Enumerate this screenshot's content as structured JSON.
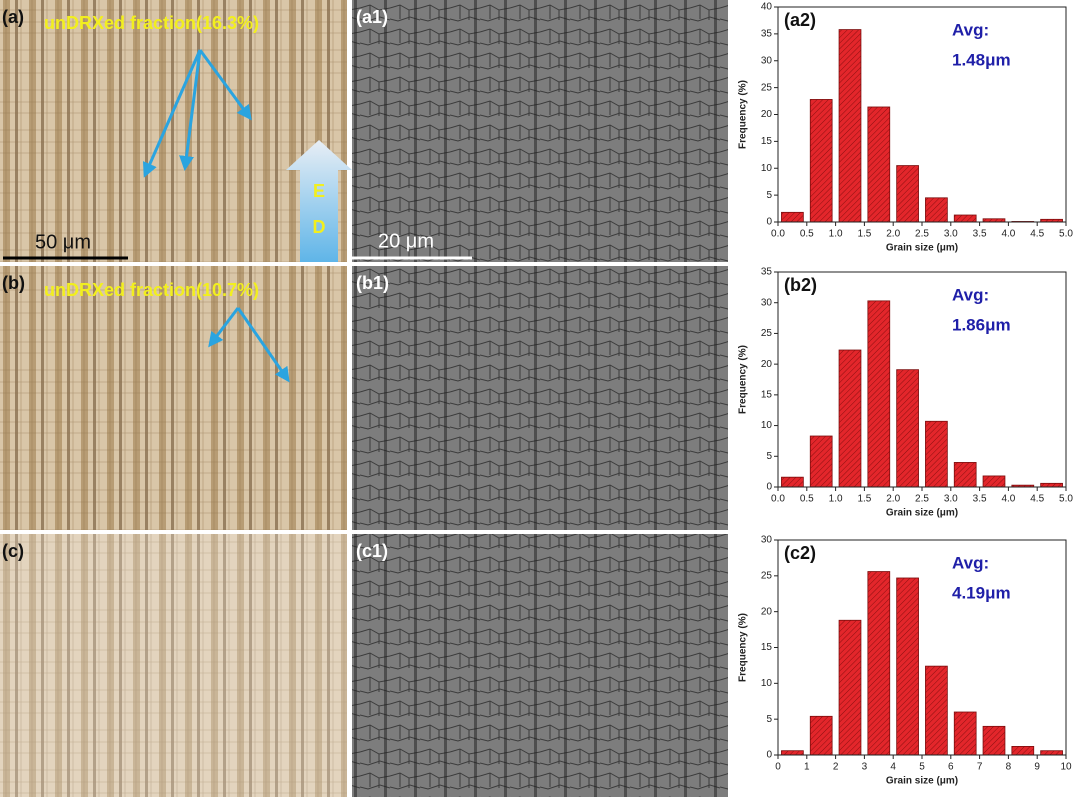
{
  "panels": [
    {
      "label": "(a)",
      "annotation": "unDRXed fraction(16.3%)",
      "scale_bar": "50 μm",
      "direction": [
        "E",
        "D"
      ]
    },
    {
      "label": "(b)",
      "annotation": "unDRXed fraction(10.7%)"
    },
    {
      "label": "(c)"
    }
  ],
  "sem_panels": [
    {
      "label": "(a1)",
      "scale_bar": "20 μm"
    },
    {
      "label": "(b1)"
    },
    {
      "label": "(c1)"
    }
  ],
  "chart_data": [
    {
      "type": "histogram",
      "panel_label": "(a2)",
      "annotations": [
        "Avg:",
        "1.48μm"
      ],
      "xlabel": "Grain size (μm)",
      "ylabel": "Frequency (%)",
      "color": "#e3262b",
      "bins": [
        0,
        0.5,
        1,
        1.5,
        2,
        2.5,
        3,
        3.5,
        4,
        4.5,
        5
      ],
      "values": [
        1.8,
        22.8,
        35.8,
        21.4,
        10.5,
        4.5,
        1.3,
        0.6,
        0.1,
        0.5
      ],
      "xlim": [
        0,
        5
      ],
      "xticks": [
        {
          "value": 0,
          "label": "0.0"
        },
        0.5,
        {
          "value": 1,
          "label": "1.0"
        },
        1.5,
        {
          "value": 2,
          "label": "2.0"
        },
        2.5,
        {
          "value": 3,
          "label": "3.0"
        },
        3.5,
        {
          "value": 4,
          "label": "4.0"
        },
        4.5,
        {
          "value": 5,
          "label": "5.0"
        }
      ],
      "ylim": [
        0,
        40
      ],
      "yticks": [
        0,
        5,
        10,
        15,
        20,
        25,
        30,
        35,
        40
      ]
    },
    {
      "type": "histogram",
      "panel_label": "(b2)",
      "annotations": [
        "Avg:",
        "1.86μm"
      ],
      "xlabel": "Grain size (μm)",
      "ylabel": "Frequency (%)",
      "color": "#e3262b",
      "bins": [
        0,
        0.5,
        1,
        1.5,
        2,
        2.5,
        3,
        3.5,
        4,
        4.5,
        5
      ],
      "values": [
        1.6,
        8.3,
        22.3,
        30.3,
        19.1,
        10.7,
        4.0,
        1.8,
        0.3,
        0.6
      ],
      "xlim": [
        0,
        5
      ],
      "xticks": [
        {
          "value": 0,
          "label": "0.0"
        },
        0.5,
        {
          "value": 1,
          "label": "1.0"
        },
        1.5,
        {
          "value": 2,
          "label": "2.0"
        },
        2.5,
        {
          "value": 3,
          "label": "3.0"
        },
        3.5,
        {
          "value": 4,
          "label": "4.0"
        },
        4.5,
        {
          "value": 5,
          "label": "5.0"
        }
      ],
      "ylim": [
        0,
        35
      ],
      "yticks": [
        0,
        5,
        10,
        15,
        20,
        25,
        30,
        35
      ]
    },
    {
      "type": "histogram",
      "panel_label": "(c2)",
      "annotations": [
        "Avg:",
        "4.19μm"
      ],
      "xlabel": "Grain size (μm)",
      "ylabel": "Frequency (%)",
      "color": "#e3262b",
      "bins": [
        0,
        1,
        2,
        3,
        4,
        5,
        6,
        7,
        8,
        9,
        10
      ],
      "values": [
        0.6,
        5.4,
        18.8,
        25.6,
        24.7,
        12.4,
        6.0,
        4.0,
        1.2,
        0.6
      ],
      "xlim": [
        0,
        10
      ],
      "xticks": [
        0,
        1,
        2,
        3,
        4,
        5,
        6,
        7,
        8,
        9,
        10
      ],
      "ylim": [
        0,
        30
      ],
      "yticks": [
        0,
        5,
        10,
        15,
        20,
        25,
        30
      ]
    }
  ]
}
